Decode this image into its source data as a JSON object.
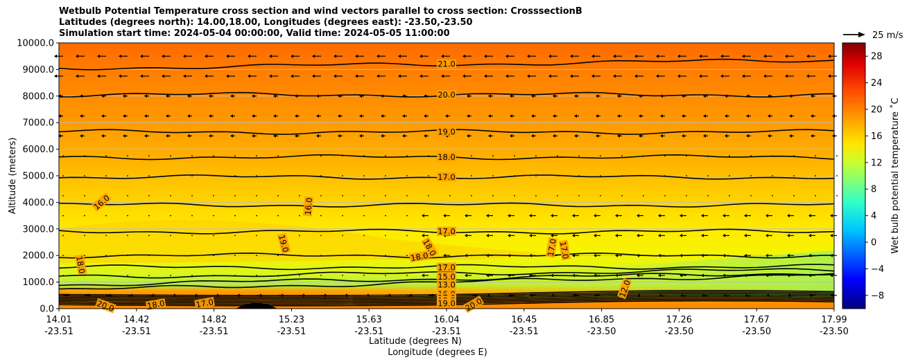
{
  "chart_data": {
    "type": "heatmap",
    "title_lines": [
      "Wetbulb Potential Temperature cross section and wind vectors parallel to cross section: CrosssectionB",
      "Latitudes (degrees north): 14.00,18.00, Longitudes (degrees east): -23.50,-23.50",
      "Simulation start time: 2024-05-04 00:00:00, Valid time: 2024-05-05 11:00:00"
    ],
    "ylabel": "Altitude (meters)",
    "xlabel_lat": "Latitude (degrees N)",
    "xlabel_lon": "Longitude (degrees E)",
    "ylim": [
      0,
      10000
    ],
    "y_ticks": [
      0,
      1000,
      2000,
      3000,
      4000,
      5000,
      6000,
      7000,
      8000,
      9000,
      10000
    ],
    "y_tick_labels": [
      "0.0",
      "1000.0",
      "2000.0",
      "3000.0",
      "4000.0",
      "5000.0",
      "6000.0",
      "7000.0",
      "8000.0",
      "9000.0",
      "10000.0"
    ],
    "x_ticks": [
      {
        "lat": "14.01",
        "lon": "-23.51"
      },
      {
        "lat": "14.42",
        "lon": "-23.51"
      },
      {
        "lat": "14.82",
        "lon": "-23.51"
      },
      {
        "lat": "15.23",
        "lon": "-23.51"
      },
      {
        "lat": "15.63",
        "lon": "-23.51"
      },
      {
        "lat": "16.04",
        "lon": "-23.51"
      },
      {
        "lat": "16.45",
        "lon": "-23.51"
      },
      {
        "lat": "16.85",
        "lon": "-23.50"
      },
      {
        "lat": "17.26",
        "lon": "-23.50"
      },
      {
        "lat": "17.67",
        "lon": "-23.50"
      },
      {
        "lat": "17.99",
        "lon": "-23.50"
      }
    ],
    "colorbar": {
      "label": "Wet bulb potential temperature ˚C",
      "range": [
        -10,
        30
      ],
      "ticks": [
        -8,
        -4,
        0,
        4,
        8,
        12,
        16,
        20,
        24,
        28
      ],
      "tick_labels": [
        "−8",
        "−4",
        "0",
        "4",
        "8",
        "12",
        "16",
        "20",
        "24",
        "28"
      ]
    },
    "quiver_key": {
      "label": "25 m/s",
      "speed": 25
    },
    "contour_levels": [
      {
        "value": 21.0,
        "altitude": 9200
      },
      {
        "value": 20.0,
        "altitude": 8050
      },
      {
        "value": 19.0,
        "altitude": 6650
      },
      {
        "value": 18.0,
        "altitude": 5700
      },
      {
        "value": 17.0,
        "altitude": 4950
      },
      {
        "value": 16.0,
        "altitude": 3900
      },
      {
        "value": 17.0,
        "altitude": 2900
      },
      {
        "value": 18.0,
        "altitude": 2000
      },
      {
        "value": 17.0,
        "altitude": 1550
      },
      {
        "value": 15.0,
        "altitude": 1200
      },
      {
        "value": 13.0,
        "altitude": 900
      },
      {
        "value": 12.0,
        "altitude": 700
      }
    ],
    "contour_labels": [
      {
        "text": "21.0",
        "x_frac": 0.5,
        "altitude": 9200,
        "rot": 0
      },
      {
        "text": "20.0",
        "x_frac": 0.5,
        "altitude": 8050,
        "rot": 0
      },
      {
        "text": "19.0",
        "x_frac": 0.5,
        "altitude": 6650,
        "rot": 0
      },
      {
        "text": "18.0",
        "x_frac": 0.5,
        "altitude": 5700,
        "rot": 0
      },
      {
        "text": "17.0",
        "x_frac": 0.5,
        "altitude": 4950,
        "rot": 0
      },
      {
        "text": "16.0",
        "x_frac": 0.055,
        "altitude": 4000,
        "rot": -40
      },
      {
        "text": "16.0",
        "x_frac": 0.322,
        "altitude": 3850,
        "rot": -85
      },
      {
        "text": "19.0",
        "x_frac": 0.29,
        "altitude": 2450,
        "rot": 75
      },
      {
        "text": "17.0",
        "x_frac": 0.5,
        "altitude": 2900,
        "rot": 0
      },
      {
        "text": "18.0",
        "x_frac": 0.478,
        "altitude": 2300,
        "rot": 60
      },
      {
        "text": "18.0",
        "x_frac": 0.465,
        "altitude": 1950,
        "rot": -10
      },
      {
        "text": "17.0",
        "x_frac": 0.636,
        "altitude": 2300,
        "rot": -80
      },
      {
        "text": "17.0",
        "x_frac": 0.652,
        "altitude": 2200,
        "rot": 80
      },
      {
        "text": "18.0",
        "x_frac": 0.028,
        "altitude": 1650,
        "rot": 80
      },
      {
        "text": "17.0",
        "x_frac": 0.5,
        "altitude": 1550,
        "rot": 0
      },
      {
        "text": "15.0",
        "x_frac": 0.5,
        "altitude": 1200,
        "rot": 0
      },
      {
        "text": "13.0",
        "x_frac": 0.5,
        "altitude": 900,
        "rot": 0
      },
      {
        "text": "12.0",
        "x_frac": 0.73,
        "altitude": 750,
        "rot": -70
      },
      {
        "text": "20.0",
        "x_frac": 0.06,
        "altitude": 100,
        "rot": 20
      },
      {
        "text": "18.0",
        "x_frac": 0.125,
        "altitude": 150,
        "rot": -10
      },
      {
        "text": "17.0",
        "x_frac": 0.188,
        "altitude": 200,
        "rot": -10
      },
      {
        "text": "20.0",
        "x_frac": 0.535,
        "altitude": 150,
        "rot": -30
      },
      {
        "text": "16.0",
        "x_frac": 0.5,
        "altitude": 550,
        "rot": 0
      },
      {
        "text": "17.0",
        "x_frac": 0.5,
        "altitude": 400,
        "rot": 0
      },
      {
        "text": "18.0",
        "x_frac": 0.5,
        "altitude": 300,
        "rot": 0
      },
      {
        "text": "19.0",
        "x_frac": 0.5,
        "altitude": 200,
        "rot": 0
      }
    ]
  }
}
